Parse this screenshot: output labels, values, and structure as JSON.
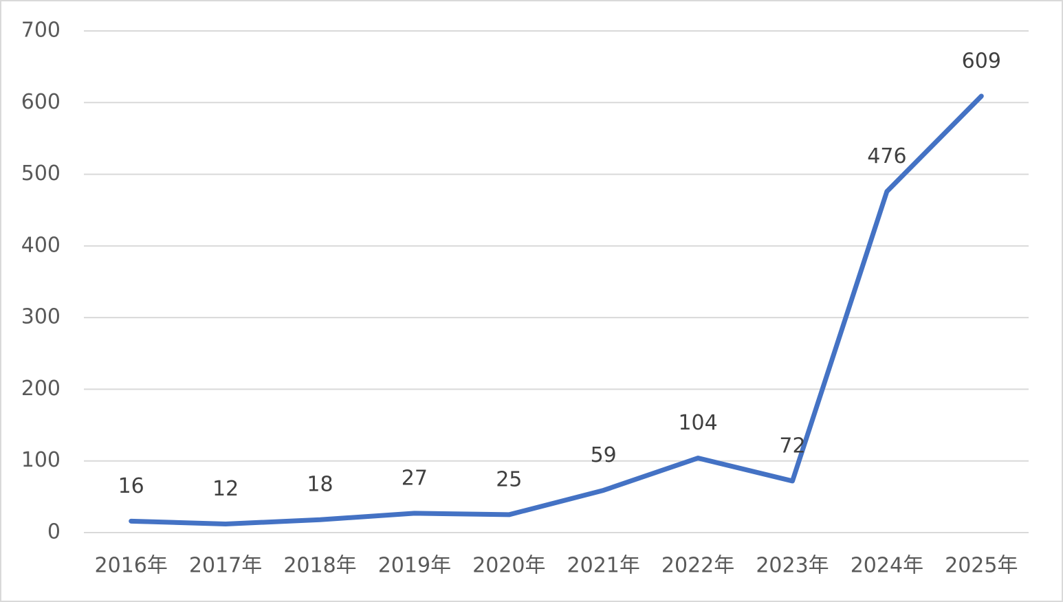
{
  "chart_data": {
    "type": "line",
    "categories": [
      "2016年",
      "2017年",
      "2018年",
      "2019年",
      "2020年",
      "2021年",
      "2022年",
      "2023年",
      "2024年",
      "2025年"
    ],
    "values": [
      16,
      12,
      18,
      27,
      25,
      59,
      104,
      72,
      476,
      609
    ],
    "color": "#4472c4",
    "ylim": [
      0,
      700
    ],
    "yticks": [
      0,
      100,
      200,
      300,
      400,
      500,
      600,
      700
    ],
    "grid": true
  }
}
